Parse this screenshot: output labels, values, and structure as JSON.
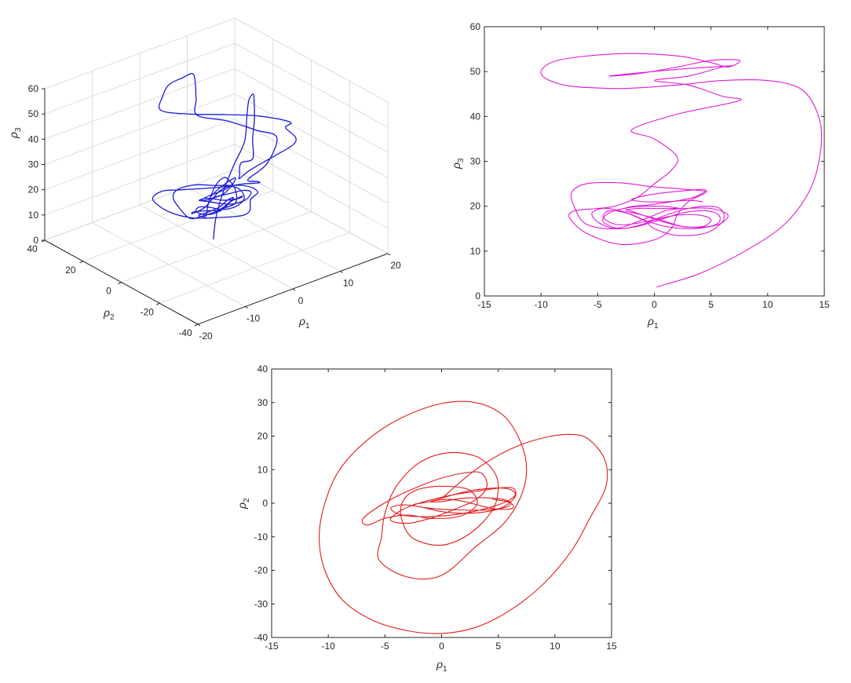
{
  "chart_data": [
    {
      "type": "line",
      "projection": "3d",
      "series_color": "#1a1ad6",
      "xlabel": "ρ1",
      "ylabel": "ρ2",
      "zlabel": "ρ3",
      "xlim": [
        -20,
        20
      ],
      "ylim": [
        -40,
        40
      ],
      "zlim": [
        0,
        60
      ],
      "xticks": [
        "-20",
        "-10",
        "0",
        "10",
        "20"
      ],
      "yticks": [
        "-40",
        "-20",
        "0",
        "20",
        "40"
      ],
      "zticks": [
        "0",
        "10",
        "20",
        "30",
        "40",
        "50",
        "60"
      ],
      "grid": true
    },
    {
      "type": "line",
      "series_color": "#e01ad6",
      "xlabel": "ρ1",
      "ylabel": "ρ3",
      "xlim": [
        -15,
        15
      ],
      "ylim": [
        0,
        60
      ],
      "xticks": [
        "-15",
        "-10",
        "-5",
        "0",
        "5",
        "10",
        "15"
      ],
      "yticks": [
        "0",
        "10",
        "20",
        "30",
        "40",
        "50",
        "60"
      ],
      "grid": false,
      "points": [
        [
          0.2,
          2
        ],
        [
          4,
          5
        ],
        [
          8,
          10
        ],
        [
          11.5,
          16
        ],
        [
          13.8,
          24
        ],
        [
          14.7,
          33
        ],
        [
          14.5,
          40
        ],
        [
          13,
          46
        ],
        [
          10,
          48
        ],
        [
          6,
          48
        ],
        [
          2,
          47
        ],
        [
          -2,
          46.3
        ],
        [
          -4.5,
          46.3
        ],
        [
          -8,
          47
        ],
        [
          -10,
          49.5
        ],
        [
          -8.5,
          52.5
        ],
        [
          -3,
          54
        ],
        [
          2,
          53.5
        ],
        [
          5,
          52
        ],
        [
          6.5,
          51
        ],
        [
          7.5,
          52.5
        ],
        [
          5,
          52.5
        ],
        [
          2,
          51
        ],
        [
          -1.5,
          49.5
        ],
        [
          -4,
          49
        ],
        [
          -1,
          49.8
        ],
        [
          2,
          50.5
        ],
        [
          5,
          51
        ],
        [
          7,
          51.3
        ],
        [
          6,
          51
        ],
        [
          3,
          49
        ],
        [
          0,
          48
        ],
        [
          3,
          47
        ],
        [
          6,
          44.5
        ],
        [
          7.5,
          43.5
        ],
        [
          2,
          40.5
        ],
        [
          -2,
          37
        ],
        [
          0,
          35
        ],
        [
          2,
          31
        ],
        [
          1.5,
          28
        ],
        [
          0,
          25
        ],
        [
          -1.5,
          22
        ],
        [
          -3.5,
          20
        ],
        [
          -5,
          19.5
        ],
        [
          -7,
          19
        ],
        [
          -7.5,
          17.5
        ],
        [
          -6,
          14
        ],
        [
          -3,
          11.5
        ],
        [
          0,
          12.5
        ],
        [
          1.5,
          15
        ],
        [
          2,
          18
        ],
        [
          3,
          21
        ],
        [
          4.5,
          23
        ],
        [
          4,
          23.5
        ],
        [
          0,
          24.3
        ],
        [
          -3,
          25.2
        ],
        [
          -6,
          25
        ],
        [
          -7.3,
          23
        ],
        [
          -7,
          19.5
        ],
        [
          -6,
          16
        ],
        [
          -3.5,
          15
        ],
        [
          -1,
          17
        ],
        [
          1,
          19
        ],
        [
          2.2,
          19.5
        ],
        [
          0.5,
          20
        ],
        [
          -2,
          19.8
        ],
        [
          -4,
          18.5
        ],
        [
          -4.5,
          16.5
        ],
        [
          -3,
          15
        ],
        [
          -1,
          16
        ],
        [
          1,
          18
        ],
        [
          3,
          19.5
        ],
        [
          5,
          20
        ],
        [
          6,
          19
        ],
        [
          6,
          16.5
        ],
        [
          4.5,
          14
        ],
        [
          2,
          13.5
        ],
        [
          0,
          15
        ],
        [
          -1,
          17
        ],
        [
          -3,
          19
        ],
        [
          -4.5,
          19.5
        ],
        [
          -5.5,
          18.5
        ],
        [
          -5,
          16.5
        ],
        [
          -3.5,
          15
        ],
        [
          -1.5,
          15.5
        ],
        [
          0.5,
          17
        ],
        [
          2.5,
          18.5
        ],
        [
          4.5,
          19
        ],
        [
          5.7,
          18
        ],
        [
          5.5,
          16
        ],
        [
          3.5,
          15
        ],
        [
          1,
          15.5
        ],
        [
          -1,
          17
        ],
        [
          -2.5,
          18.5
        ],
        [
          -4,
          19
        ],
        [
          -4.5,
          17.5
        ],
        [
          -3.5,
          16
        ],
        [
          -2,
          16
        ],
        [
          0,
          17
        ],
        [
          2,
          18
        ],
        [
          4,
          18
        ],
        [
          5,
          17
        ],
        [
          4.3,
          15.5
        ],
        [
          2.5,
          15.5
        ],
        [
          0.5,
          17
        ],
        [
          -1.5,
          18.3
        ],
        [
          -2.5,
          19
        ],
        [
          -1.5,
          19.5
        ],
        [
          0.5,
          19.5
        ],
        [
          2.5,
          19.5
        ],
        [
          5,
          19.5
        ],
        [
          6.5,
          18
        ],
        [
          5.5,
          15.8
        ],
        [
          3,
          15.3
        ],
        [
          0.8,
          16.5
        ],
        [
          -1,
          18
        ],
        [
          -2.5,
          19.6
        ],
        [
          -0.5,
          20.3
        ],
        [
          1.5,
          21
        ],
        [
          3.5,
          22
        ],
        [
          4.5,
          23.7
        ],
        [
          2,
          23.3
        ],
        [
          -0.5,
          22.5
        ],
        [
          -2,
          21.5
        ],
        [
          -0.8,
          21
        ],
        [
          1,
          21
        ],
        [
          3,
          21.3
        ],
        [
          4.3,
          21
        ]
      ]
    },
    {
      "type": "line",
      "series_color": "#e01a1a",
      "xlabel": "ρ1",
      "ylabel": "ρ2",
      "xlim": [
        -15,
        15
      ],
      "ylim": [
        -40,
        40
      ],
      "xticks": [
        "-15",
        "-10",
        "-5",
        "0",
        "5",
        "10",
        "15"
      ],
      "yticks": [
        "-40",
        "-30",
        "-20",
        "-10",
        "0",
        "10",
        "20",
        "30",
        "40"
      ],
      "grid": false,
      "points": [
        [
          0.2,
          2
        ],
        [
          3,
          10
        ],
        [
          6,
          16
        ],
        [
          9,
          19.5
        ],
        [
          11.5,
          20.5
        ],
        [
          13,
          19
        ],
        [
          14.4,
          13
        ],
        [
          14.5,
          5
        ],
        [
          13,
          -5
        ],
        [
          11.5,
          -14
        ],
        [
          9,
          -24
        ],
        [
          6,
          -32
        ],
        [
          3,
          -37
        ],
        [
          0,
          -38.8
        ],
        [
          -3,
          -38
        ],
        [
          -6,
          -35
        ],
        [
          -8.7,
          -29
        ],
        [
          -10.3,
          -20
        ],
        [
          -10.8,
          -10
        ],
        [
          -10.3,
          0
        ],
        [
          -9,
          10
        ],
        [
          -6.5,
          19
        ],
        [
          -3.5,
          25.5
        ],
        [
          0,
          29.7
        ],
        [
          3,
          30
        ],
        [
          5.5,
          26
        ],
        [
          7,
          18
        ],
        [
          7.5,
          10
        ],
        [
          7,
          2
        ],
        [
          5.5,
          -6
        ],
        [
          3,
          -13
        ],
        [
          0,
          -21.5
        ],
        [
          -3,
          -22
        ],
        [
          -5.5,
          -17
        ],
        [
          -5.3,
          -10
        ],
        [
          -5,
          -3
        ],
        [
          -4,
          5
        ],
        [
          -2,
          12
        ],
        [
          0.5,
          15
        ],
        [
          3,
          14
        ],
        [
          4.5,
          10
        ],
        [
          5,
          5
        ],
        [
          4.5,
          -2
        ],
        [
          2.5,
          -9
        ],
        [
          0,
          -12.5
        ],
        [
          -2.5,
          -10.5
        ],
        [
          -3.5,
          -5
        ],
        [
          -3.5,
          0
        ],
        [
          -2.5,
          3.5
        ],
        [
          -0.5,
          5
        ],
        [
          2,
          4.5
        ],
        [
          3,
          2
        ],
        [
          3,
          -1
        ],
        [
          1.5,
          -4
        ],
        [
          -1,
          -4.5
        ],
        [
          -3,
          -3.5
        ],
        [
          -5,
          -4.5
        ],
        [
          -6.5,
          -6.5
        ],
        [
          -7,
          -5
        ],
        [
          -6,
          -2
        ],
        [
          -4,
          2
        ],
        [
          -2,
          5
        ],
        [
          0,
          7.5
        ],
        [
          2,
          9
        ],
        [
          3.5,
          9
        ],
        [
          4,
          5
        ],
        [
          3,
          1
        ],
        [
          1,
          -2
        ],
        [
          -1,
          -4.5
        ],
        [
          -3,
          -6
        ],
        [
          -4.5,
          -5
        ],
        [
          -3.5,
          -2
        ],
        [
          -1.5,
          0.5
        ],
        [
          1,
          2.5
        ],
        [
          3,
          3.5
        ],
        [
          5,
          4.5
        ],
        [
          6.3,
          4.5
        ],
        [
          6.5,
          2
        ],
        [
          5.5,
          -1
        ],
        [
          4,
          -2.5
        ],
        [
          2,
          -3
        ],
        [
          0,
          -2.5
        ],
        [
          -2,
          -1
        ],
        [
          -3.5,
          -0.5
        ],
        [
          -4.5,
          -1.5
        ],
        [
          -3.5,
          -3.5
        ],
        [
          -1,
          -4
        ],
        [
          2,
          -3
        ],
        [
          4.5,
          -1
        ],
        [
          6,
          1
        ],
        [
          6.5,
          3
        ],
        [
          5.5,
          4.5
        ],
        [
          3,
          4
        ],
        [
          1,
          2.5
        ],
        [
          -1,
          0.5
        ],
        [
          -2.5,
          -0.5
        ],
        [
          -1,
          -1.5
        ],
        [
          1.5,
          -2
        ],
        [
          4,
          -2
        ],
        [
          5.8,
          -1
        ],
        [
          6,
          0.5
        ],
        [
          4.5,
          1.5
        ],
        [
          2,
          1.5
        ],
        [
          0,
          0.5
        ],
        [
          -1,
          0.5
        ],
        [
          0.5,
          1.2
        ],
        [
          2,
          0.5
        ],
        [
          3.5,
          -0.8
        ],
        [
          5,
          -1.8
        ],
        [
          6.3,
          -1.5
        ],
        [
          6,
          0.2
        ],
        [
          4.5,
          1.2
        ]
      ]
    }
  ]
}
